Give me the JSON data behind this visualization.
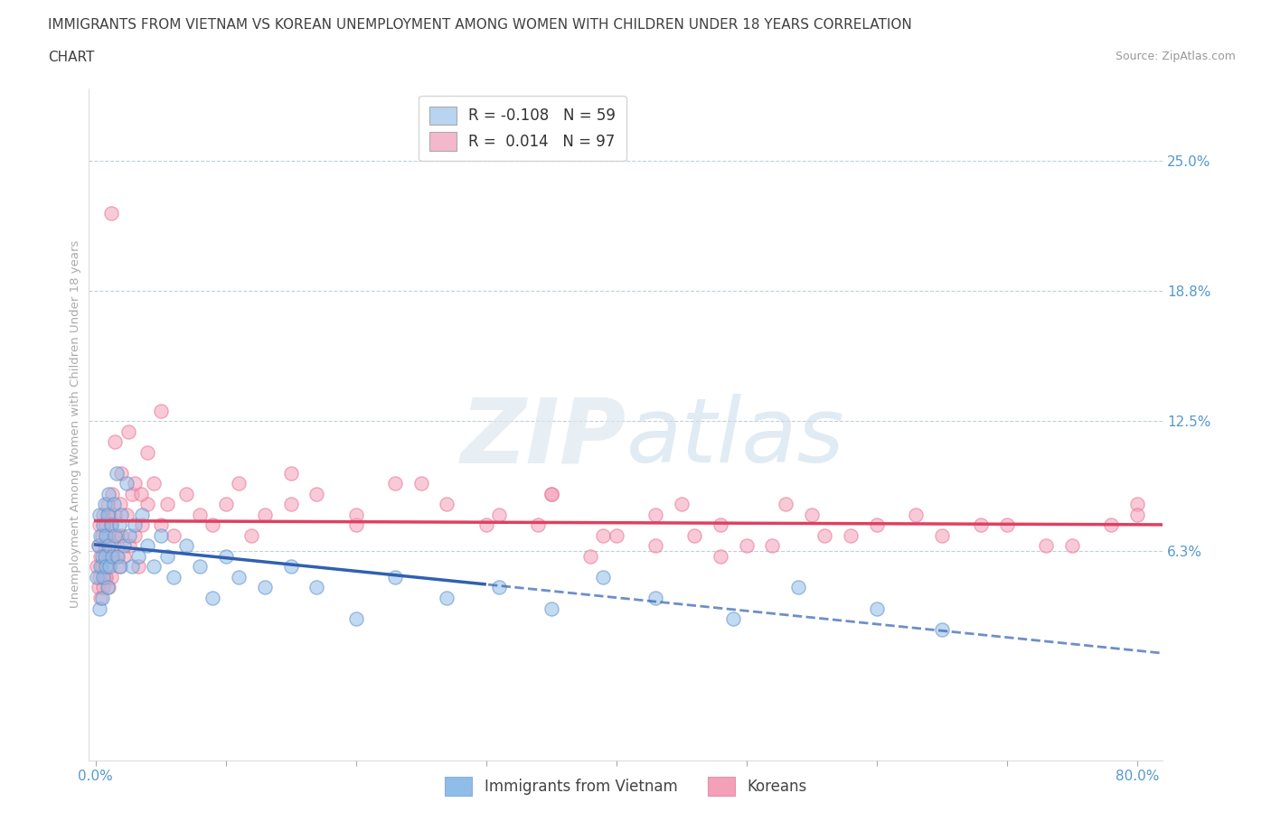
{
  "title_line1": "IMMIGRANTS FROM VIETNAM VS KOREAN UNEMPLOYMENT AMONG WOMEN WITH CHILDREN UNDER 18 YEARS CORRELATION",
  "title_line2": "CHART",
  "source": "Source: ZipAtlas.com",
  "ylabel": "Unemployment Among Women with Children Under 18 years",
  "xlim": [
    -0.005,
    0.82
  ],
  "ylim": [
    -0.038,
    0.285
  ],
  "yticks": [
    0.0,
    0.0625,
    0.125,
    0.1875,
    0.25
  ],
  "ytick_labels": [
    "",
    "6.3%",
    "12.5%",
    "18.8%",
    "25.0%"
  ],
  "xticks": [
    0.0,
    0.1,
    0.2,
    0.3,
    0.4,
    0.5,
    0.6,
    0.7,
    0.8
  ],
  "xtick_labels": [
    "0.0%",
    "",
    "",
    "",
    "",
    "",
    "",
    "",
    "80.0%"
  ],
  "watermark_zip": "ZIP",
  "watermark_atlas": "atlas",
  "series1_label": "Immigrants from Vietnam",
  "series2_label": "Koreans",
  "series1_color": "#90bce8",
  "series2_color": "#f4a0b8",
  "series1_edge": "#6090c8",
  "series2_edge": "#e87090",
  "series1_line_color": "#3060b0",
  "series2_line_color": "#e04060",
  "grid_color": "#b8ccd8",
  "background_color": "#ffffff",
  "axis_label_color": "#5599cc",
  "title_color": "#404040",
  "legend_box_color1": "#b8d4f0",
  "legend_box_color2": "#f4b8cc",
  "legend_R1": "R = -0.108",
  "legend_N1": "N = 59",
  "legend_R2": "R =  0.014",
  "legend_N2": "N = 97",
  "series1_x": [
    0.001,
    0.002,
    0.003,
    0.003,
    0.004,
    0.004,
    0.005,
    0.005,
    0.006,
    0.006,
    0.007,
    0.007,
    0.008,
    0.008,
    0.009,
    0.009,
    0.01,
    0.01,
    0.011,
    0.012,
    0.013,
    0.014,
    0.015,
    0.016,
    0.017,
    0.018,
    0.019,
    0.02,
    0.022,
    0.024,
    0.026,
    0.028,
    0.03,
    0.033,
    0.036,
    0.04,
    0.045,
    0.05,
    0.055,
    0.06,
    0.07,
    0.08,
    0.09,
    0.1,
    0.11,
    0.13,
    0.15,
    0.17,
    0.2,
    0.23,
    0.27,
    0.31,
    0.35,
    0.39,
    0.43,
    0.49,
    0.54,
    0.6,
    0.65
  ],
  "series1_y": [
    0.05,
    0.065,
    0.035,
    0.08,
    0.055,
    0.07,
    0.06,
    0.04,
    0.075,
    0.05,
    0.085,
    0.06,
    0.055,
    0.07,
    0.045,
    0.08,
    0.065,
    0.09,
    0.055,
    0.075,
    0.06,
    0.085,
    0.07,
    0.1,
    0.06,
    0.075,
    0.055,
    0.08,
    0.065,
    0.095,
    0.07,
    0.055,
    0.075,
    0.06,
    0.08,
    0.065,
    0.055,
    0.07,
    0.06,
    0.05,
    0.065,
    0.055,
    0.04,
    0.06,
    0.05,
    0.045,
    0.055,
    0.045,
    0.03,
    0.05,
    0.04,
    0.045,
    0.035,
    0.05,
    0.04,
    0.03,
    0.045,
    0.035,
    0.025
  ],
  "series2_x": [
    0.001,
    0.002,
    0.002,
    0.003,
    0.003,
    0.004,
    0.004,
    0.005,
    0.005,
    0.006,
    0.006,
    0.007,
    0.007,
    0.008,
    0.008,
    0.009,
    0.009,
    0.01,
    0.01,
    0.011,
    0.011,
    0.012,
    0.012,
    0.013,
    0.014,
    0.015,
    0.016,
    0.017,
    0.018,
    0.019,
    0.02,
    0.022,
    0.024,
    0.026,
    0.028,
    0.03,
    0.033,
    0.036,
    0.04,
    0.045,
    0.05,
    0.055,
    0.06,
    0.07,
    0.08,
    0.09,
    0.1,
    0.11,
    0.12,
    0.13,
    0.15,
    0.17,
    0.2,
    0.23,
    0.27,
    0.31,
    0.35,
    0.39,
    0.43,
    0.48,
    0.53,
    0.58,
    0.63,
    0.68,
    0.73,
    0.78,
    0.8,
    0.05,
    0.04,
    0.03,
    0.02,
    0.025,
    0.035,
    0.015,
    0.012,
    0.008,
    0.15,
    0.2,
    0.25,
    0.3,
    0.35,
    0.45,
    0.5,
    0.55,
    0.6,
    0.65,
    0.7,
    0.75,
    0.8,
    0.4,
    0.38,
    0.34,
    0.43,
    0.46,
    0.48,
    0.52,
    0.56
  ],
  "series2_y": [
    0.055,
    0.065,
    0.045,
    0.075,
    0.05,
    0.06,
    0.04,
    0.07,
    0.055,
    0.08,
    0.045,
    0.065,
    0.05,
    0.075,
    0.06,
    0.085,
    0.055,
    0.07,
    0.045,
    0.08,
    0.06,
    0.075,
    0.05,
    0.09,
    0.065,
    0.08,
    0.06,
    0.07,
    0.055,
    0.085,
    0.07,
    0.06,
    0.08,
    0.065,
    0.09,
    0.07,
    0.055,
    0.075,
    0.085,
    0.095,
    0.075,
    0.085,
    0.07,
    0.09,
    0.08,
    0.075,
    0.085,
    0.095,
    0.07,
    0.08,
    0.1,
    0.09,
    0.075,
    0.095,
    0.085,
    0.08,
    0.09,
    0.07,
    0.08,
    0.075,
    0.085,
    0.07,
    0.08,
    0.075,
    0.065,
    0.075,
    0.085,
    0.13,
    0.11,
    0.095,
    0.1,
    0.12,
    0.09,
    0.115,
    0.225,
    0.05,
    0.085,
    0.08,
    0.095,
    0.075,
    0.09,
    0.085,
    0.065,
    0.08,
    0.075,
    0.07,
    0.075,
    0.065,
    0.08,
    0.07,
    0.06,
    0.075,
    0.065,
    0.07,
    0.06,
    0.065,
    0.07
  ]
}
